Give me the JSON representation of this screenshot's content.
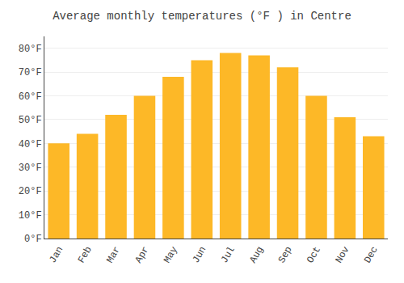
{
  "chart_data": {
    "type": "bar",
    "title": "Average monthly temperatures (°F ) in Centre",
    "categories": [
      "Jan",
      "Feb",
      "Mar",
      "Apr",
      "May",
      "Jun",
      "Jul",
      "Aug",
      "Sep",
      "Oct",
      "Nov",
      "Dec"
    ],
    "values": [
      40,
      44,
      52,
      60,
      68,
      75,
      78,
      77,
      72,
      60,
      51,
      43
    ],
    "color": "#FDB827",
    "ylim": [
      0,
      85
    ],
    "yticks": [
      {
        "value": 0,
        "label": "0°F"
      },
      {
        "value": 10,
        "label": "10°F"
      },
      {
        "value": 20,
        "label": "20°F"
      },
      {
        "value": 30,
        "label": "30°F"
      },
      {
        "value": 40,
        "label": "40°F"
      },
      {
        "value": 50,
        "label": "50°F"
      },
      {
        "value": 60,
        "label": "60°F"
      },
      {
        "value": 70,
        "label": "70°F"
      },
      {
        "value": 80,
        "label": "80°F"
      }
    ],
    "grid": true
  }
}
